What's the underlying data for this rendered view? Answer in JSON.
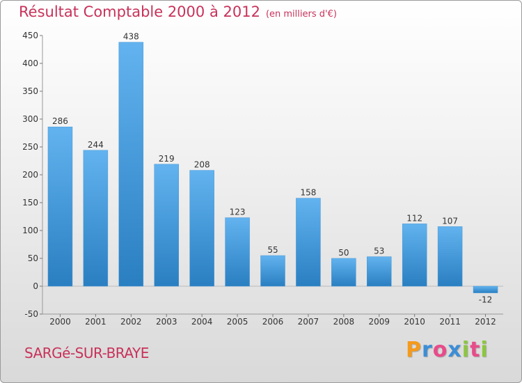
{
  "title": "Résultat Comptable 2000 à 2012",
  "subtitle": "(en milliers d'€)",
  "commune": "SARGé-SUR-BRAYE",
  "logo": {
    "letters": [
      "P",
      "r",
      "o",
      "x",
      "i",
      "t",
      "i"
    ],
    "colors": [
      "#f59a1b",
      "#3c8ed6",
      "#e84b8a",
      "#3c8ed6",
      "#8cc63f",
      "#e84b8a",
      "#8cc63f"
    ]
  },
  "colors": {
    "bar_top": "#62b3ef",
    "bar_bottom": "#2a7fc1",
    "title": "#c8325a"
  },
  "chart_data": {
    "type": "bar",
    "title": "Résultat Comptable 2000 à 2012",
    "subtitle": "(en milliers d'€)",
    "xlabel": "",
    "ylabel": "",
    "categories": [
      "2000",
      "2001",
      "2002",
      "2003",
      "2004",
      "2005",
      "2006",
      "2007",
      "2008",
      "2009",
      "2010",
      "2011",
      "2012"
    ],
    "values": [
      286,
      244,
      438,
      219,
      208,
      123,
      55,
      158,
      50,
      53,
      112,
      107,
      -12
    ],
    "ylim": [
      -50,
      450
    ],
    "yticks": [
      -50,
      0,
      50,
      100,
      150,
      200,
      250,
      300,
      350,
      400,
      450
    ],
    "grid": false,
    "legend": "none"
  }
}
